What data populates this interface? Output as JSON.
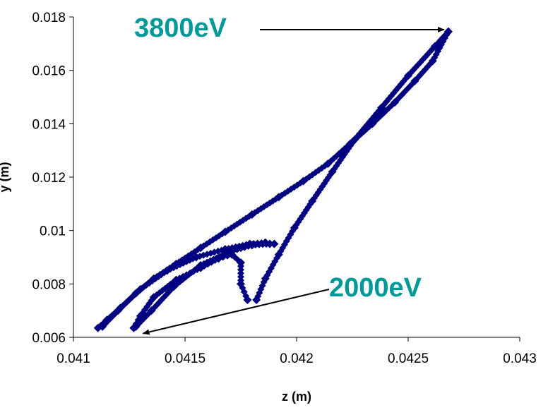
{
  "chart_data": {
    "type": "scatter",
    "title": "",
    "xlabel": "z (m)",
    "ylabel": "y (m)",
    "xlim": [
      0.041,
      0.043
    ],
    "ylim": [
      0.006,
      0.018
    ],
    "xticks": [
      "0.041",
      "0.0415",
      "0.042",
      "0.0425",
      "0.043"
    ],
    "yticks": [
      "0.006",
      "0.008",
      "0.01",
      "0.012",
      "0.014",
      "0.016",
      "0.018"
    ],
    "grid": false,
    "legend": "none",
    "marker_color": "#000080",
    "series": [
      {
        "x": [
          0.04111,
          0.04115,
          0.04121,
          0.04128,
          0.04136,
          0.04146,
          0.04157,
          0.04168,
          0.0418,
          0.04192,
          0.04203,
          0.04214,
          0.04224,
          0.04234,
          0.04244,
          0.04253,
          0.04261,
          0.04268
        ],
        "y": [
          0.00635,
          0.00665,
          0.0071,
          0.00765,
          0.0082,
          0.00875,
          0.00935,
          0.00995,
          0.0106,
          0.01125,
          0.01185,
          0.0125,
          0.01325,
          0.014,
          0.0148,
          0.0156,
          0.01635,
          0.01745
        ]
      },
      {
        "x": [
          0.04113,
          0.0412,
          0.0413,
          0.04142,
          0.04155,
          0.04168,
          0.04179,
          0.04186,
          0.0419
        ],
        "y": [
          0.0064,
          0.007,
          0.0078,
          0.0085,
          0.009,
          0.0093,
          0.0095,
          0.00955,
          0.0095
        ]
      },
      {
        "x": [
          0.04127,
          0.0413,
          0.04136,
          0.04146,
          0.04157,
          0.04165,
          0.04171,
          0.04175,
          0.04175,
          0.04178
        ],
        "y": [
          0.00635,
          0.0068,
          0.0075,
          0.00815,
          0.0086,
          0.00895,
          0.0091,
          0.0088,
          0.008,
          0.0074
        ]
      },
      {
        "x": [
          0.04128,
          0.04135,
          0.04145,
          0.04157,
          0.0417,
          0.0418,
          0.04188
        ],
        "y": [
          0.0064,
          0.007,
          0.0079,
          0.0087,
          0.0092,
          0.00945,
          0.0095
        ]
      },
      {
        "x": [
          0.04182,
          0.04186,
          0.04192,
          0.04199,
          0.04207,
          0.04216,
          0.04226,
          0.04238,
          0.0425,
          0.04262,
          0.04268
        ],
        "y": [
          0.0074,
          0.0082,
          0.0091,
          0.0101,
          0.0111,
          0.0122,
          0.0134,
          0.0146,
          0.0158,
          0.0169,
          0.01745
        ]
      }
    ],
    "annotations": [
      {
        "text": "3800eV",
        "color": "#009999",
        "arrow_to": {
          "x": 0.04268,
          "y": 0.01745
        }
      },
      {
        "text": "2000eV",
        "color": "#009999",
        "arrow_to": {
          "x": 0.04128,
          "y": 0.00625
        }
      }
    ]
  }
}
